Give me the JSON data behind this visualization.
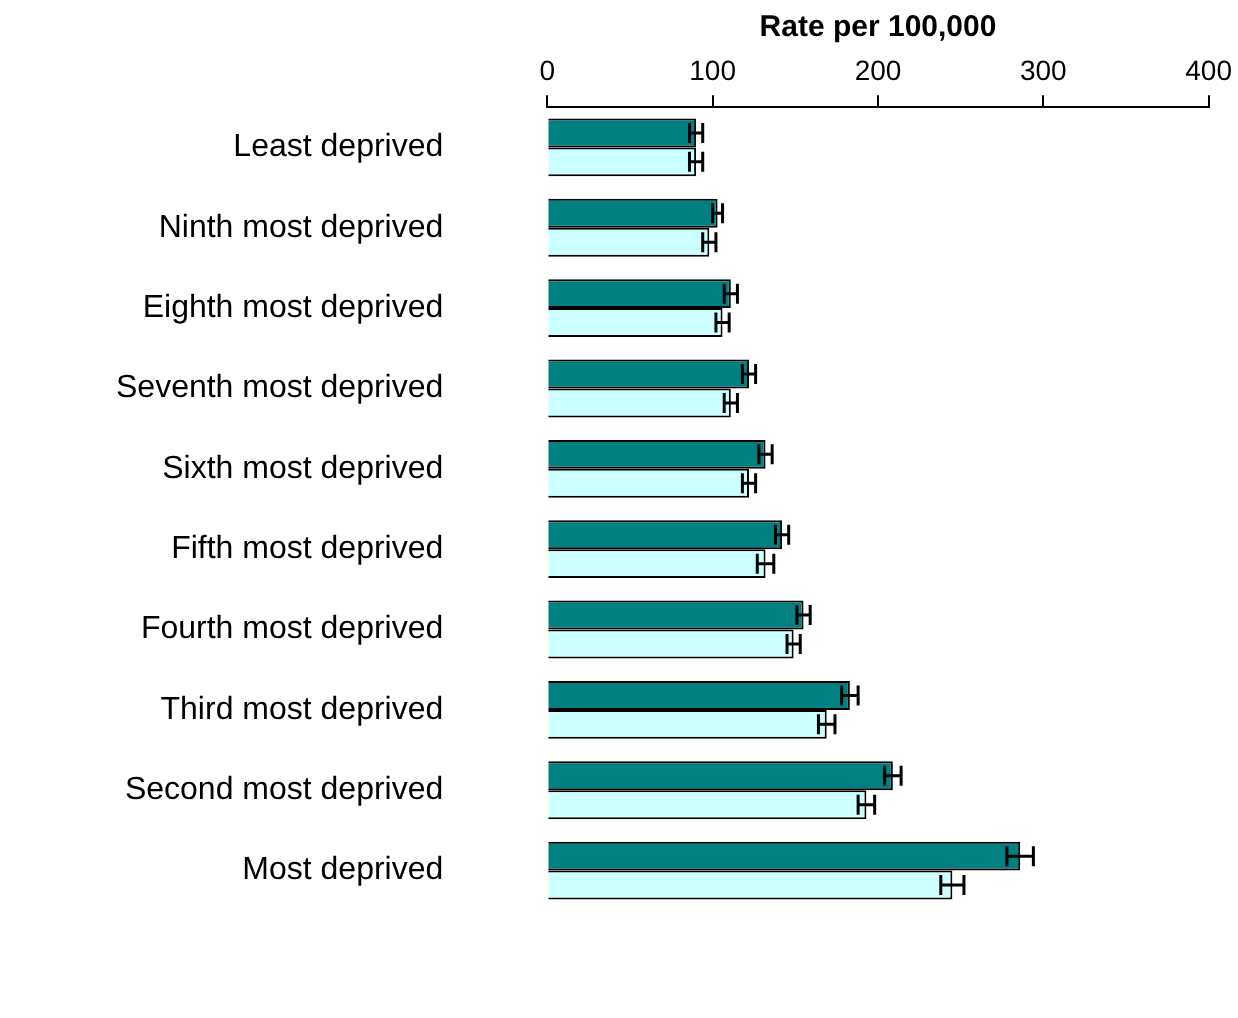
{
  "chart_data": {
    "type": "bar",
    "orientation": "horizontal",
    "xlabel": "Rate per 100,000",
    "categories": [
      "Least deprived",
      "Ninth most deprived",
      "Eighth most deprived",
      "Seventh most deprived",
      "Sixth most deprived",
      "Fifth most deprived",
      "Fourth most deprived",
      "Third most deprived",
      "Second most deprived",
      "Most deprived"
    ],
    "series": [
      {
        "color": "#008080",
        "values": [
          90,
          103,
          111,
          122,
          132,
          142,
          155,
          183,
          209,
          286
        ],
        "errors": [
          4,
          3,
          4,
          4,
          4,
          4,
          4,
          5,
          5,
          8
        ]
      },
      {
        "color": "#ccffff",
        "values": [
          90,
          98,
          106,
          111,
          122,
          132,
          149,
          169,
          193,
          245
        ],
        "errors": [
          4,
          4,
          4,
          4,
          4,
          5,
          4,
          5,
          5,
          7
        ]
      }
    ],
    "xlim": [
      0,
      400
    ],
    "xticks": [
      0,
      100,
      200,
      300,
      400
    ],
    "grid": false,
    "legend": false
  }
}
